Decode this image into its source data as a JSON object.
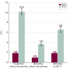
{
  "chart_data": {
    "type": "bar",
    "ylabel": "(%)",
    "categories": [
      "Roughened\nwithout shot peening",
      "Annealing\nwithout shot peening",
      "Annealing\nat 400 °C"
    ],
    "series": [
      {
        "name": "A (%)",
        "color": "#7b003a",
        "values": [
          1.88,
          1.0,
          1.88
        ],
        "value_labels": [
          "1.88",
          "1.00",
          "1.88"
        ]
      },
      {
        "name": "Z(%)",
        "color": "#aec8c0",
        "values": [
          10.21,
          3.7,
          6.6
        ],
        "errors": [
          0.6,
          0.35,
          0.55
        ],
        "value_labels": [
          "10.21",
          "3.70",
          "6.60"
        ]
      }
    ],
    "ylim": [
      0,
      12
    ],
    "yticks": [
      0,
      2,
      4,
      6,
      8,
      10,
      12
    ],
    "grid": true,
    "legend": "upper right",
    "data_labels": true
  }
}
